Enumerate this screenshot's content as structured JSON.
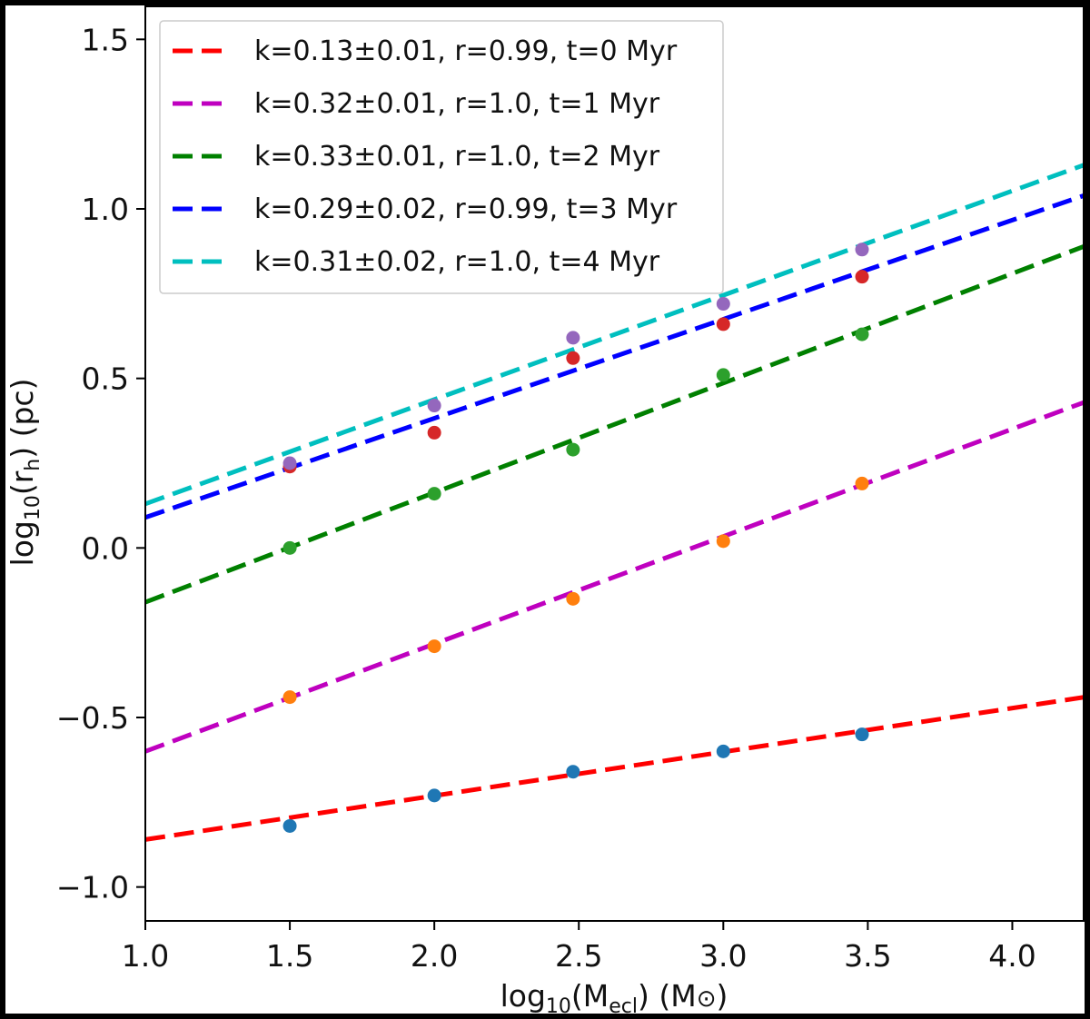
{
  "chart_data": {
    "type": "scatter",
    "xlabel": {
      "base": "log",
      "sub": "10",
      "mid": "(M",
      "sub2": "ecl",
      "tail": ") (M",
      "sym": "⊙",
      "end": ")"
    },
    "ylabel": {
      "base": "log",
      "sub": "10",
      "mid": "(r",
      "sub2": "h",
      "tail": ") (pc)"
    },
    "xlim": [
      1.0,
      4.25
    ],
    "ylim": [
      -1.1,
      1.6
    ],
    "xticks": [
      "1.0",
      "1.5",
      "2.0",
      "2.5",
      "3.0",
      "3.5",
      "4.0"
    ],
    "yticks": [
      "−1.0",
      "−0.5",
      "0.0",
      "0.5",
      "1.0",
      "1.5"
    ],
    "grid": false,
    "legend_position": "top-left",
    "series": [
      {
        "name": "k=0.13±0.01, r=0.99, t=0 Myr",
        "line_color": "#ff0000",
        "point_color": "#1f77b4",
        "points": {
          "x": [
            1.5,
            2.0,
            2.48,
            3.0,
            3.48
          ],
          "y": [
            -0.82,
            -0.73,
            -0.66,
            -0.6,
            -0.55
          ]
        },
        "fit": {
          "x": [
            1.0,
            4.25
          ],
          "y": [
            -0.86,
            -0.44
          ]
        }
      },
      {
        "name": "k=0.32±0.01, r=1.0, t=1 Myr",
        "line_color": "#bf00bf",
        "point_color": "#ff7f0e",
        "points": {
          "x": [
            1.5,
            2.0,
            2.48,
            3.0,
            3.48
          ],
          "y": [
            -0.44,
            -0.29,
            -0.15,
            0.02,
            0.19
          ]
        },
        "fit": {
          "x": [
            1.0,
            4.25
          ],
          "y": [
            -0.6,
            0.43
          ]
        }
      },
      {
        "name": "k=0.33±0.01, r=1.0, t=2 Myr",
        "line_color": "#008000",
        "point_color": "#2ca02c",
        "points": {
          "x": [
            1.5,
            2.0,
            2.48,
            3.0,
            3.48
          ],
          "y": [
            0.0,
            0.16,
            0.29,
            0.51,
            0.63
          ]
        },
        "fit": {
          "x": [
            1.0,
            4.25
          ],
          "y": [
            -0.16,
            0.89
          ]
        }
      },
      {
        "name": "k=0.29±0.02, r=0.99, t=3 Myr",
        "line_color": "#0000ff",
        "point_color": "#d62728",
        "points": {
          "x": [
            1.5,
            2.0,
            2.48,
            3.0,
            3.48
          ],
          "y": [
            0.24,
            0.34,
            0.56,
            0.66,
            0.8
          ]
        },
        "fit": {
          "x": [
            1.0,
            4.25
          ],
          "y": [
            0.09,
            1.04
          ]
        }
      },
      {
        "name": "k=0.31±0.02, r=1.0, t=4 Myr",
        "line_color": "#00bfbf",
        "point_color": "#9467bd",
        "points": {
          "x": [
            1.5,
            2.0,
            2.48,
            3.0,
            3.48
          ],
          "y": [
            0.25,
            0.42,
            0.62,
            0.72,
            0.88
          ]
        },
        "fit": {
          "x": [
            1.0,
            4.25
          ],
          "y": [
            0.13,
            1.13
          ]
        }
      }
    ]
  }
}
